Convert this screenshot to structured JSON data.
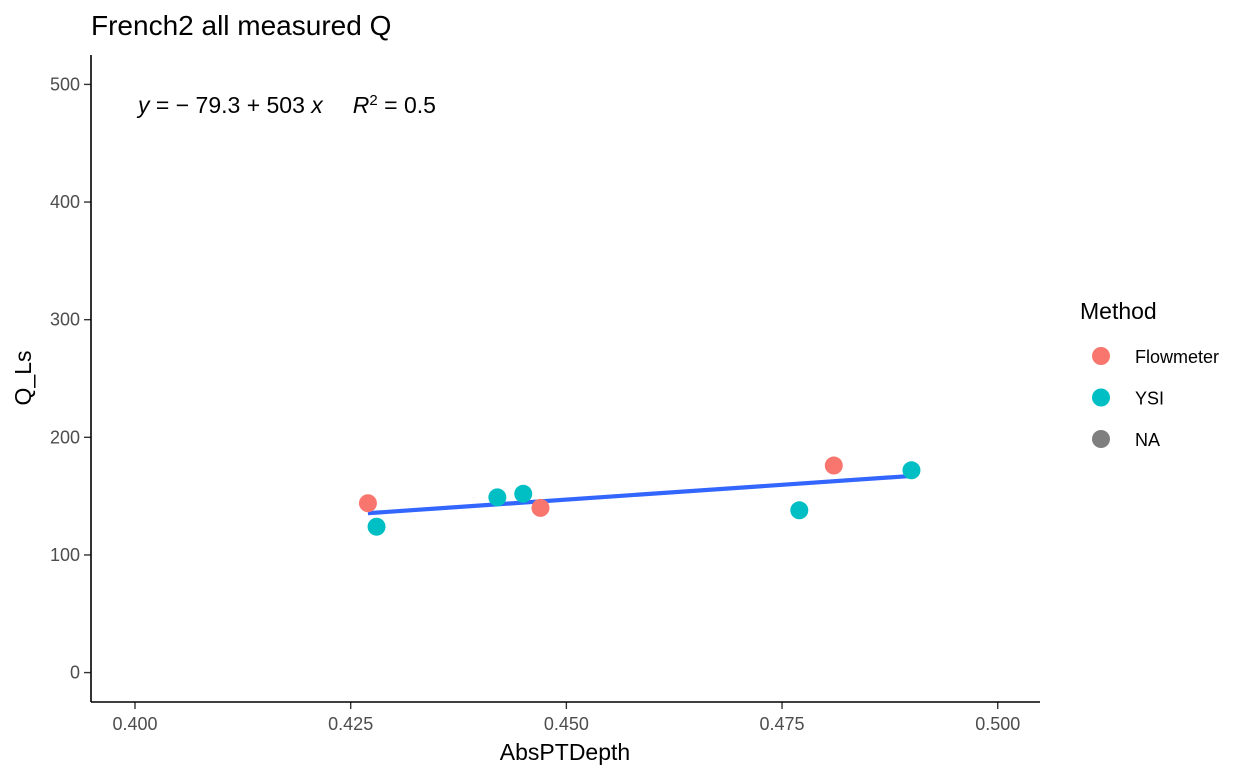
{
  "chart_data": {
    "type": "scatter",
    "title": "French2 all measured Q",
    "xlabel": "AbsPTDepth",
    "ylabel": "Q_Ls",
    "xlim": [
      0.3949,
      0.5049
    ],
    "ylim": [
      -25,
      525
    ],
    "x_ticks": [
      0.4,
      0.425,
      0.45,
      0.475,
      0.5
    ],
    "x_tick_labels": [
      "0.400",
      "0.425",
      "0.450",
      "0.475",
      "0.500"
    ],
    "y_ticks": [
      0,
      100,
      200,
      300,
      400,
      500
    ],
    "y_tick_labels": [
      "0",
      "100",
      "200",
      "300",
      "400",
      "500"
    ],
    "grid": false,
    "legend": {
      "title": "Method",
      "placement": "right",
      "entries": [
        {
          "label": "Flowmeter",
          "color": "#F8766D"
        },
        {
          "label": "YSI",
          "color": "#00BFC4"
        },
        {
          "label": "NA",
          "color": "#7F7F7F"
        }
      ]
    },
    "series": [
      {
        "name": "Flowmeter",
        "color": "#F8766D",
        "points": [
          {
            "x": 0.427,
            "y": 144
          },
          {
            "x": 0.447,
            "y": 140
          },
          {
            "x": 0.481,
            "y": 176
          }
        ]
      },
      {
        "name": "YSI",
        "color": "#00BFC4",
        "points": [
          {
            "x": 0.428,
            "y": 124
          },
          {
            "x": 0.442,
            "y": 149
          },
          {
            "x": 0.445,
            "y": 152
          },
          {
            "x": 0.477,
            "y": 138
          },
          {
            "x": 0.49,
            "y": 172
          }
        ]
      }
    ],
    "fit_line": {
      "color": "#3366FF",
      "x_start": 0.427,
      "x_end": 0.49,
      "intercept": -79.3,
      "slope": 503
    },
    "annotation": {
      "y_var": "y",
      "equation_rhs": " = − 79.3 + 503 ",
      "x_var": "x",
      "r_var": "R",
      "r_exp": "2",
      "r_value": " = 0.5"
    }
  }
}
